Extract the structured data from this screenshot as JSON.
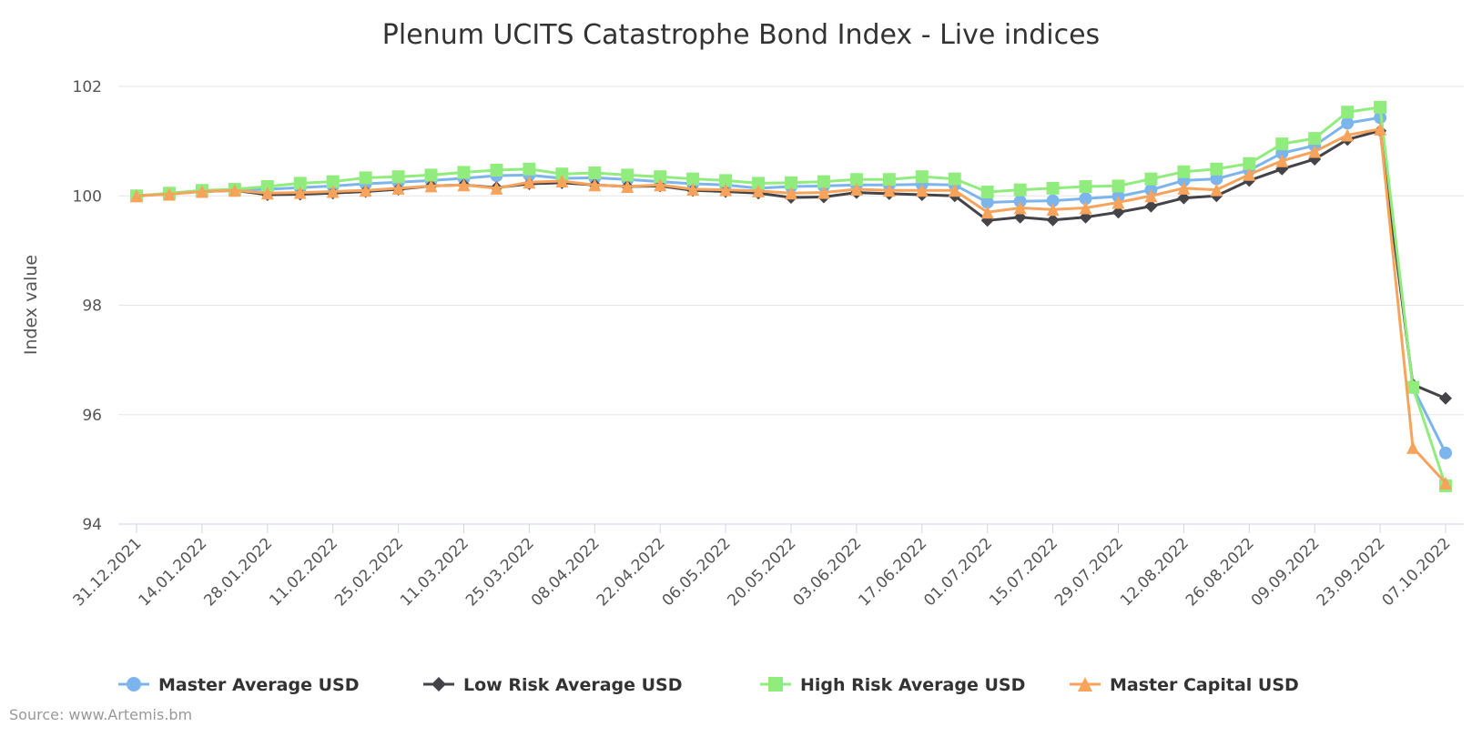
{
  "chart_data": {
    "type": "line",
    "title": "Plenum UCITS Catastrophe Bond Index - Live indices",
    "ylabel": "Index value",
    "xlabel": "",
    "ylim": [
      94,
      102
    ],
    "y_ticks": [
      94,
      96,
      98,
      100,
      102
    ],
    "grid": true,
    "legend_placement": "bottom",
    "x": [
      "31.12.2021",
      "07.01.2022",
      "14.01.2022",
      "21.01.2022",
      "28.01.2022",
      "04.02.2022",
      "11.02.2022",
      "18.02.2022",
      "25.02.2022",
      "04.03.2022",
      "11.03.2022",
      "18.03.2022",
      "25.03.2022",
      "01.04.2022",
      "08.04.2022",
      "15.04.2022",
      "22.04.2022",
      "29.04.2022",
      "06.05.2022",
      "13.05.2022",
      "20.05.2022",
      "27.05.2022",
      "03.06.2022",
      "10.06.2022",
      "17.06.2022",
      "24.06.2022",
      "01.07.2022",
      "08.07.2022",
      "15.07.2022",
      "22.07.2022",
      "29.07.2022",
      "05.08.2022",
      "12.08.2022",
      "19.08.2022",
      "26.08.2022",
      "02.09.2022",
      "09.09.2022",
      "16.09.2022",
      "23.09.2022",
      "30.09.2022",
      "07.10.2022"
    ],
    "x_tick_labels": [
      "31.12.2021",
      "14.01.2022",
      "28.01.2022",
      "11.02.2022",
      "25.02.2022",
      "11.03.2022",
      "25.03.2022",
      "08.04.2022",
      "22.04.2022",
      "06.05.2022",
      "20.05.2022",
      "03.06.2022",
      "17.06.2022",
      "01.07.2022",
      "15.07.2022",
      "29.07.2022",
      "12.08.2022",
      "26.08.2022",
      "09.09.2022",
      "23.09.2022",
      "07.10.2022"
    ],
    "series": [
      {
        "name": "Master Average USD",
        "color": "#7cb5ec",
        "marker": "circle",
        "values": [
          100,
          100.04,
          100.08,
          100.1,
          100.12,
          100.15,
          100.18,
          100.22,
          100.25,
          100.28,
          100.32,
          100.37,
          100.38,
          100.32,
          100.33,
          100.3,
          100.26,
          100.22,
          100.2,
          100.14,
          100.17,
          100.18,
          100.2,
          100.2,
          100.21,
          100.2,
          99.88,
          99.9,
          99.91,
          99.95,
          99.99,
          100.11,
          100.28,
          100.31,
          100.47,
          100.78,
          100.92,
          101.33,
          101.43,
          96.5,
          95.3
        ]
      },
      {
        "name": "Low Risk Average USD",
        "color": "#434348",
        "marker": "diamond",
        "values": [
          100,
          100.04,
          100.08,
          100.1,
          100.02,
          100.03,
          100.05,
          100.08,
          100.12,
          100.18,
          100.2,
          100.15,
          100.22,
          100.24,
          100.2,
          100.17,
          100.18,
          100.1,
          100.08,
          100.05,
          99.97,
          99.98,
          100.06,
          100.04,
          100.02,
          100.0,
          99.55,
          99.61,
          99.56,
          99.61,
          99.7,
          99.81,
          99.96,
          100.0,
          100.28,
          100.49,
          100.67,
          101.03,
          101.19,
          96.55,
          96.3
        ]
      },
      {
        "name": "High Risk Average USD",
        "color": "#90ed7d",
        "marker": "square",
        "values": [
          100,
          100.05,
          100.1,
          100.12,
          100.17,
          100.23,
          100.26,
          100.33,
          100.35,
          100.38,
          100.43,
          100.47,
          100.49,
          100.4,
          100.42,
          100.38,
          100.35,
          100.31,
          100.28,
          100.23,
          100.24,
          100.26,
          100.3,
          100.3,
          100.35,
          100.31,
          100.07,
          100.11,
          100.14,
          100.17,
          100.18,
          100.31,
          100.44,
          100.49,
          100.59,
          100.95,
          101.05,
          101.53,
          101.62,
          96.5,
          94.7
        ]
      },
      {
        "name": "Master Capital USD",
        "color": "#f7a35c",
        "marker": "triangle",
        "values": [
          100,
          100.03,
          100.08,
          100.1,
          100.05,
          100.06,
          100.08,
          100.1,
          100.14,
          100.18,
          100.2,
          100.14,
          100.25,
          100.27,
          100.2,
          100.17,
          100.2,
          100.12,
          100.11,
          100.09,
          100.05,
          100.06,
          100.12,
          100.1,
          100.1,
          100.1,
          99.7,
          99.78,
          99.75,
          99.78,
          99.88,
          100.0,
          100.14,
          100.11,
          100.39,
          100.64,
          100.81,
          101.11,
          101.22,
          95.4,
          94.75
        ]
      }
    ],
    "credits": "Source: www.Artemis.bm"
  }
}
